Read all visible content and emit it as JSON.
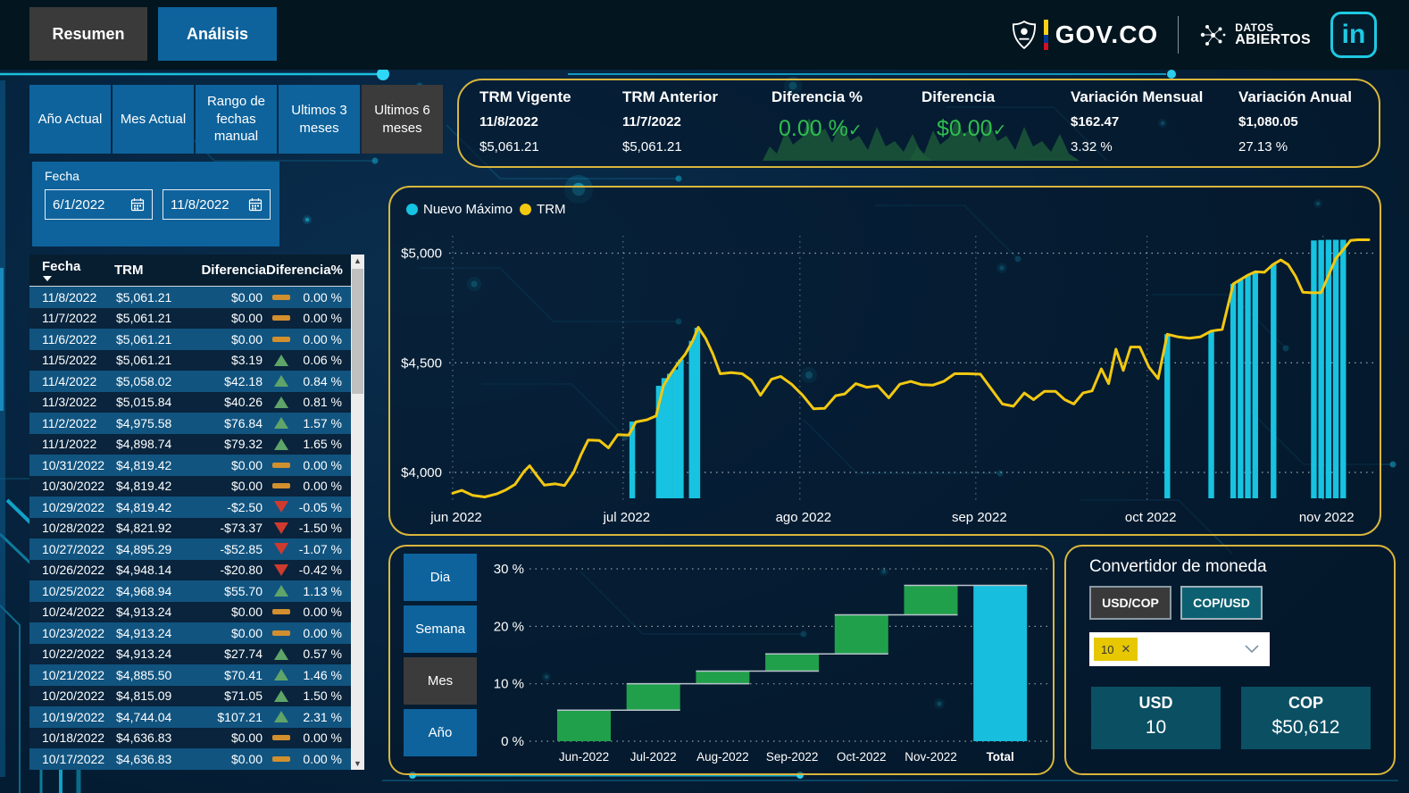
{
  "colors": {
    "accent_border": "#D9B63C",
    "panel_blue": "#0E639C",
    "selected_dark": "#3B3B3B",
    "trm_line": "#F2C811",
    "nuevo_maximo_bar": "#17C3E0",
    "waterfall_increase": "#21A04B",
    "waterfall_total": "#17BEDE",
    "kpi_green": "#2FBE4E",
    "table_row_light": "#115480",
    "table_row_dark": "#09243C",
    "flat_icon": "#D28F2E",
    "up_icon": "#5FA468",
    "down_icon": "#CF3A2D"
  },
  "header": {
    "tabs": [
      {
        "label": "Resumen",
        "active": false
      },
      {
        "label": "Análisis",
        "active": true
      }
    ],
    "govco": "GOV.CO",
    "datos_line1": "DATOS",
    "datos_line2": "ABIERTOS",
    "linkedin": "in"
  },
  "filters": {
    "buttons": [
      {
        "label": "Año Actual",
        "selected": false
      },
      {
        "label": "Mes Actual",
        "selected": false
      },
      {
        "label": "Rango de fechas manual",
        "selected": false
      },
      {
        "label": "Ultimos 3 meses",
        "selected": false
      },
      {
        "label": "Ultimos 6 meses",
        "selected": true
      }
    ],
    "fecha": {
      "label": "Fecha",
      "start": "6/1/2022",
      "end": "11/8/2022"
    }
  },
  "kpis": {
    "trm_vigente": {
      "title": "TRM Vigente",
      "date": "11/8/2022",
      "value": "$5,061.21"
    },
    "trm_anterior": {
      "title": "TRM Anterior",
      "date": "11/7/2022",
      "value": "$5,061.21"
    },
    "diferencia_pct": {
      "title": "Diferencia %",
      "value": "0.00 %",
      "check": "✓"
    },
    "diferencia": {
      "title": "Diferencia",
      "value": "$0.00",
      "check": "✓"
    },
    "variacion_mensual": {
      "title": "Variación Mensual",
      "value": "$162.47",
      "pct": "3.32 %"
    },
    "variacion_anual": {
      "title": "Variación Anual",
      "value": "$1,080.05",
      "pct": "27.13 %"
    }
  },
  "table": {
    "columns": [
      "Fecha",
      "TRM",
      "Diferencia",
      "Diferencia%"
    ],
    "rows": [
      [
        "11/8/2022",
        "$5,061.21",
        "$0.00",
        "flat",
        "0.00 %"
      ],
      [
        "11/7/2022",
        "$5,061.21",
        "$0.00",
        "flat",
        "0.00 %"
      ],
      [
        "11/6/2022",
        "$5,061.21",
        "$0.00",
        "flat",
        "0.00 %"
      ],
      [
        "11/5/2022",
        "$5,061.21",
        "$3.19",
        "up",
        "0.06 %"
      ],
      [
        "11/4/2022",
        "$5,058.02",
        "$42.18",
        "up",
        "0.84 %"
      ],
      [
        "11/3/2022",
        "$5,015.84",
        "$40.26",
        "up",
        "0.81 %"
      ],
      [
        "11/2/2022",
        "$4,975.58",
        "$76.84",
        "up",
        "1.57 %"
      ],
      [
        "11/1/2022",
        "$4,898.74",
        "$79.32",
        "up",
        "1.65 %"
      ],
      [
        "10/31/2022",
        "$4,819.42",
        "$0.00",
        "flat",
        "0.00 %"
      ],
      [
        "10/30/2022",
        "$4,819.42",
        "$0.00",
        "flat",
        "0.00 %"
      ],
      [
        "10/29/2022",
        "$4,819.42",
        "-$2.50",
        "down",
        "-0.05 %"
      ],
      [
        "10/28/2022",
        "$4,821.92",
        "-$73.37",
        "down",
        "-1.50 %"
      ],
      [
        "10/27/2022",
        "$4,895.29",
        "-$52.85",
        "down",
        "-1.07 %"
      ],
      [
        "10/26/2022",
        "$4,948.14",
        "-$20.80",
        "down",
        "-0.42 %"
      ],
      [
        "10/25/2022",
        "$4,968.94",
        "$55.70",
        "up",
        "1.13 %"
      ],
      [
        "10/24/2022",
        "$4,913.24",
        "$0.00",
        "flat",
        "0.00 %"
      ],
      [
        "10/23/2022",
        "$4,913.24",
        "$0.00",
        "flat",
        "0.00 %"
      ],
      [
        "10/22/2022",
        "$4,913.24",
        "$27.74",
        "up",
        "0.57 %"
      ],
      [
        "10/21/2022",
        "$4,885.50",
        "$70.41",
        "up",
        "1.46 %"
      ],
      [
        "10/20/2022",
        "$4,815.09",
        "$71.05",
        "up",
        "1.50 %"
      ],
      [
        "10/19/2022",
        "$4,744.04",
        "$107.21",
        "up",
        "2.31 %"
      ],
      [
        "10/18/2022",
        "$4,636.83",
        "$0.00",
        "flat",
        "0.00 %"
      ],
      [
        "10/17/2022",
        "$4,636.83",
        "$0.00",
        "flat",
        "0.00 %"
      ]
    ]
  },
  "period_buttons": [
    {
      "label": "Dia",
      "selected": false
    },
    {
      "label": "Semana",
      "selected": false
    },
    {
      "label": "Mes",
      "selected": true
    },
    {
      "label": "Año",
      "selected": false
    }
  ],
  "converter": {
    "title": "Convertidor de moneda",
    "modes": [
      {
        "label": "USD/COP",
        "selected": false
      },
      {
        "label": "COP/USD",
        "selected": true
      }
    ],
    "amount_chip": "10",
    "remove_icon": "✕",
    "usd": {
      "label": "USD",
      "value": "10"
    },
    "cop": {
      "label": "COP",
      "value": "$50,612"
    }
  },
  "chart_data": [
    {
      "type": "line",
      "legend": [
        "Nuevo Máximo",
        "TRM"
      ],
      "x_months": [
        "jun 2022",
        "jul 2022",
        "ago 2022",
        "sep 2022",
        "oct 2022",
        "nov 2022"
      ],
      "month_fracs": [
        0,
        0.186,
        0.379,
        0.571,
        0.758,
        0.95
      ],
      "yticks": [
        {
          "label": "$4,000",
          "value": 4000
        },
        {
          "label": "$4,500",
          "value": 4500
        },
        {
          "label": "$5,000",
          "value": 5000
        }
      ],
      "ylim": [
        3880,
        5160
      ],
      "series": [
        {
          "name": "TRM",
          "type": "line",
          "points": [
            [
              0.0,
              3905
            ],
            [
              0.01,
              3918
            ],
            [
              0.022,
              3895
            ],
            [
              0.035,
              3888
            ],
            [
              0.048,
              3902
            ],
            [
              0.058,
              3920
            ],
            [
              0.068,
              3945
            ],
            [
              0.078,
              4005
            ],
            [
              0.084,
              4030
            ],
            [
              0.092,
              3985
            ],
            [
              0.1,
              3942
            ],
            [
              0.112,
              3948
            ],
            [
              0.122,
              3940
            ],
            [
              0.132,
              4000
            ],
            [
              0.14,
              4080
            ],
            [
              0.148,
              4148
            ],
            [
              0.16,
              4146
            ],
            [
              0.17,
              4112
            ],
            [
              0.18,
              4172
            ],
            [
              0.192,
              4170
            ],
            [
              0.2,
              4230
            ],
            [
              0.212,
              4240
            ],
            [
              0.222,
              4258
            ],
            [
              0.23,
              4395
            ],
            [
              0.238,
              4450
            ],
            [
              0.246,
              4498
            ],
            [
              0.254,
              4540
            ],
            [
              0.262,
              4600
            ],
            [
              0.268,
              4662
            ],
            [
              0.276,
              4612
            ],
            [
              0.284,
              4540
            ],
            [
              0.292,
              4450
            ],
            [
              0.304,
              4455
            ],
            [
              0.316,
              4450
            ],
            [
              0.326,
              4420
            ],
            [
              0.336,
              4352
            ],
            [
              0.348,
              4425
            ],
            [
              0.358,
              4438
            ],
            [
              0.37,
              4402
            ],
            [
              0.382,
              4352
            ],
            [
              0.394,
              4290
            ],
            [
              0.406,
              4292
            ],
            [
              0.418,
              4350
            ],
            [
              0.428,
              4358
            ],
            [
              0.44,
              4405
            ],
            [
              0.452,
              4388
            ],
            [
              0.464,
              4395
            ],
            [
              0.476,
              4340
            ],
            [
              0.488,
              4402
            ],
            [
              0.5,
              4415
            ],
            [
              0.512,
              4400
            ],
            [
              0.524,
              4398
            ],
            [
              0.536,
              4415
            ],
            [
              0.548,
              4450
            ],
            [
              0.562,
              4450
            ],
            [
              0.576,
              4448
            ],
            [
              0.588,
              4380
            ],
            [
              0.6,
              4312
            ],
            [
              0.612,
              4302
            ],
            [
              0.624,
              4362
            ],
            [
              0.634,
              4332
            ],
            [
              0.646,
              4370
            ],
            [
              0.658,
              4370
            ],
            [
              0.668,
              4332
            ],
            [
              0.678,
              4312
            ],
            [
              0.688,
              4362
            ],
            [
              0.698,
              4372
            ],
            [
              0.708,
              4472
            ],
            [
              0.716,
              4405
            ],
            [
              0.724,
              4562
            ],
            [
              0.732,
              4465
            ],
            [
              0.74,
              4572
            ],
            [
              0.75,
              4572
            ],
            [
              0.76,
              4480
            ],
            [
              0.77,
              4428
            ],
            [
              0.78,
              4630
            ],
            [
              0.792,
              4618
            ],
            [
              0.804,
              4612
            ],
            [
              0.816,
              4618
            ],
            [
              0.828,
              4645
            ],
            [
              0.84,
              4652
            ],
            [
              0.852,
              4860
            ],
            [
              0.86,
              4880
            ],
            [
              0.868,
              4900
            ],
            [
              0.876,
              4915
            ],
            [
              0.886,
              4913
            ],
            [
              0.896,
              4950
            ],
            [
              0.904,
              4969
            ],
            [
              0.912,
              4948
            ],
            [
              0.92,
              4895
            ],
            [
              0.928,
              4822
            ],
            [
              0.938,
              4819
            ],
            [
              0.948,
              4820
            ],
            [
              0.956,
              4899
            ],
            [
              0.964,
              4976
            ],
            [
              0.972,
              5016
            ],
            [
              0.98,
              5058
            ],
            [
              0.988,
              5061
            ],
            [
              1.0,
              5061
            ]
          ]
        },
        {
          "name": "Nuevo Máximo",
          "type": "bar",
          "points": [
            [
              0.196,
              4232
            ],
            [
              0.225,
              4395
            ],
            [
              0.231,
              4430
            ],
            [
              0.237,
              4450
            ],
            [
              0.243,
              4470
            ],
            [
              0.249,
              4515
            ],
            [
              0.261,
              4600
            ],
            [
              0.267,
              4660
            ],
            [
              0.78,
              4630
            ],
            [
              0.828,
              4645
            ],
            [
              0.852,
              4860
            ],
            [
              0.86,
              4880
            ],
            [
              0.868,
              4900
            ],
            [
              0.876,
              4915
            ],
            [
              0.896,
              4950
            ],
            [
              0.94,
              5058
            ],
            [
              0.948,
              5060
            ],
            [
              0.956,
              5061
            ],
            [
              0.964,
              5061
            ],
            [
              0.972,
              5061
            ]
          ]
        }
      ]
    },
    {
      "type": "waterfall",
      "categories": [
        "Jun-2022",
        "Jul-2022",
        "Aug-2022",
        "Sep-2022",
        "Oct-2022",
        "Nov-2022",
        "Total"
      ],
      "increments": [
        5.4,
        4.6,
        2.2,
        3.0,
        6.8,
        5.13
      ],
      "total": 27.13,
      "yticks": [
        {
          "label": "0 %",
          "value": 0
        },
        {
          "label": "10 %",
          "value": 10
        },
        {
          "label": "20 %",
          "value": 20
        },
        {
          "label": "30 %",
          "value": 30
        }
      ],
      "ylim": [
        0,
        30
      ]
    }
  ]
}
